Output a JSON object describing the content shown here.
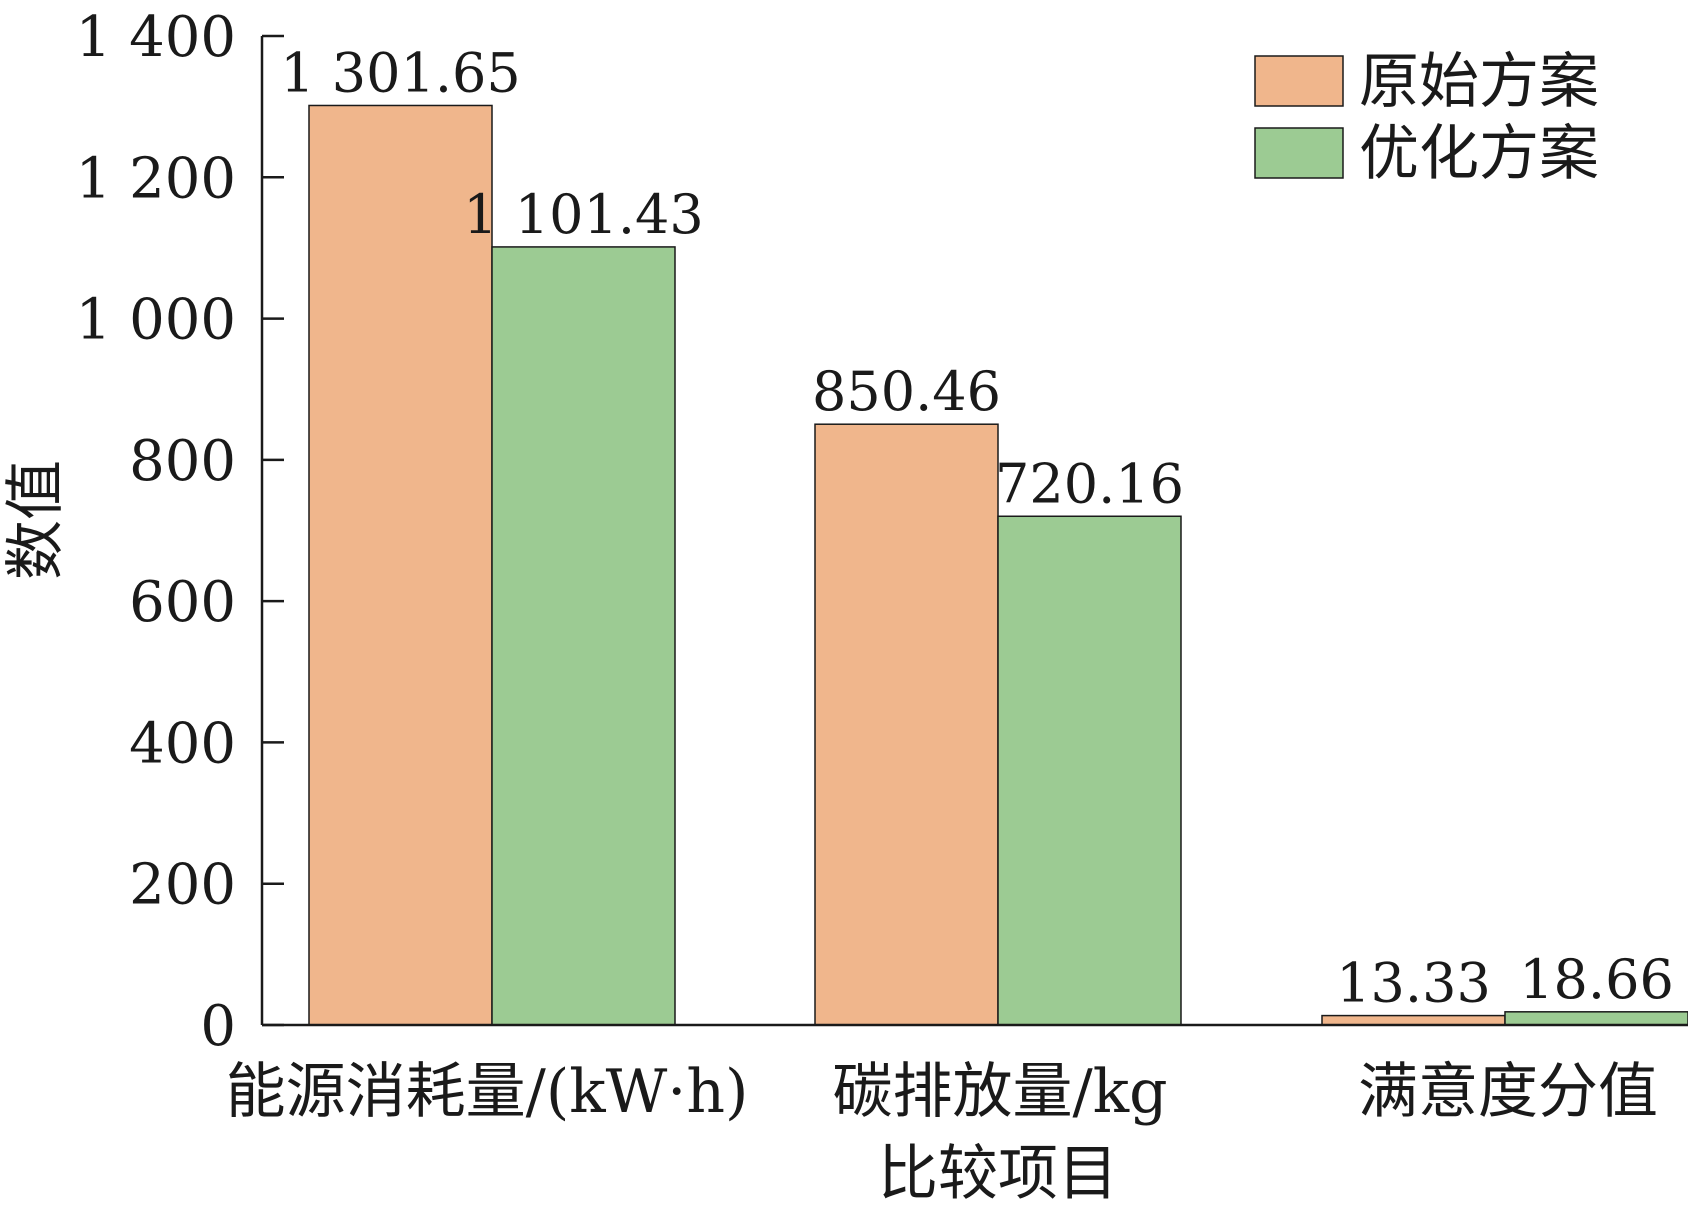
{
  "chart_data": {
    "type": "bar",
    "title": "",
    "xlabel": "比较项目",
    "ylabel": "数值",
    "ylim": [
      0,
      1400
    ],
    "yticks": [
      0,
      200,
      400,
      600,
      800,
      1000,
      1200,
      1400
    ],
    "ytick_labels": [
      "0",
      "200",
      "400",
      "600",
      "800",
      "1 000",
      "1 200",
      "1 400"
    ],
    "categories": [
      "能源消耗量/(kW·h)",
      "碳排放量/kg",
      "满意度分值"
    ],
    "series": [
      {
        "name": "原始方案",
        "color": "#f0b68c",
        "values": [
          1301.65,
          850.46,
          13.33
        ],
        "value_labels": [
          "1 301.65",
          "850.46",
          "13.33"
        ]
      },
      {
        "name": "优化方案",
        "color": "#9ccb93",
        "values": [
          1101.43,
          720.16,
          18.66
        ],
        "value_labels": [
          "1 101.43",
          "720.16",
          "18.66"
        ]
      }
    ],
    "legend_position": "top-right",
    "grid": false
  }
}
